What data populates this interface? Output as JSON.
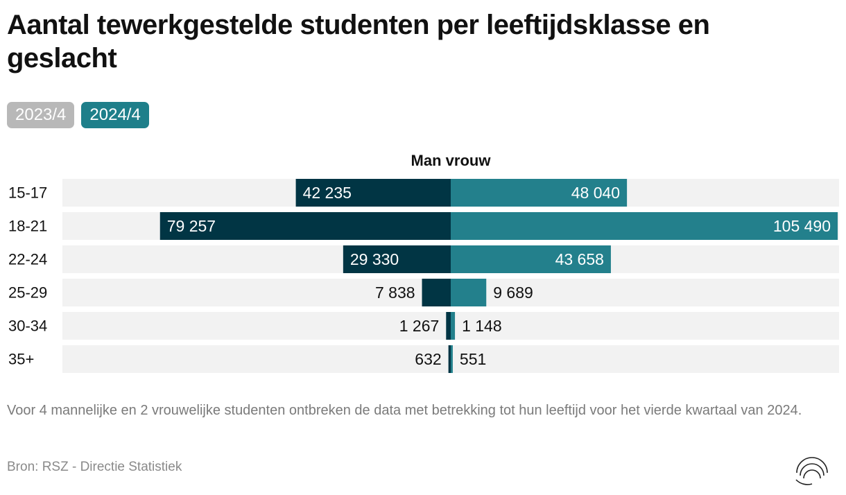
{
  "title": "Aantal tewerkgestelde studenten per leeftijdsklasse en geslacht",
  "tabs": [
    {
      "label": "2023/4",
      "active": false
    },
    {
      "label": "2024/4",
      "active": true
    }
  ],
  "footnote": "Voor 4 mannelijke en 2 vrouwelijke studenten ontbreken de data met betrekking tot hun leeftijd voor het vierde kwartaal van 2024.",
  "source": "Bron: RSZ - Directie Statistiek",
  "colors": {
    "man": "#013544",
    "vrouw": "#23808c",
    "track": "#f2f2f2",
    "tab_inactive": "#b8b8b8",
    "tab_active": "#1e7f8a"
  },
  "chart_data": {
    "type": "bar",
    "orientation": "diverging-horizontal",
    "title": "Man vrouw",
    "categories": [
      "15-17",
      "18-21",
      "22-24",
      "25-29",
      "30-34",
      "35+"
    ],
    "series": [
      {
        "name": "Man",
        "values": [
          42235,
          79257,
          29330,
          7838,
          1267,
          632
        ],
        "labels": [
          "42 235",
          "79 257",
          "29 330",
          "7 838",
          "1 267",
          "632"
        ]
      },
      {
        "name": "vrouw",
        "values": [
          48040,
          105490,
          43658,
          9689,
          1148,
          551
        ],
        "labels": [
          "48 040",
          "105 490",
          "43 658",
          "9 689",
          "1 148",
          "551"
        ]
      }
    ],
    "max_value": 105490,
    "grid": false
  }
}
